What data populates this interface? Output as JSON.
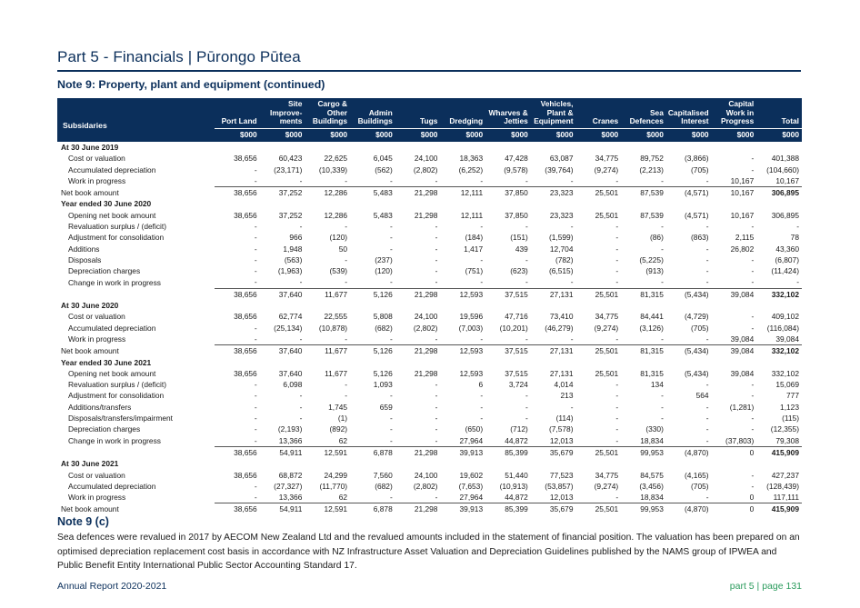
{
  "header": {
    "part_title": "Part 5 - Financials | Pūrongo Pūtea",
    "note_title": "Note 9: Property, plant and equipment (continued)"
  },
  "table": {
    "label_header": "Subsidaries",
    "columns": [
      {
        "title": "Port Land",
        "unit": "$000"
      },
      {
        "title": "Site\nImprove-\nments",
        "unit": "$000"
      },
      {
        "title": "Cargo &\nOther\nBuildings",
        "unit": "$000"
      },
      {
        "title": "Admin\nBuildings",
        "unit": "$000"
      },
      {
        "title": "Tugs",
        "unit": "$000"
      },
      {
        "title": "Dredging",
        "unit": "$000"
      },
      {
        "title": "Wharves &\nJetties",
        "unit": "$000"
      },
      {
        "title": "Vehicles,\nPlant &\nEquipment",
        "unit": "$000"
      },
      {
        "title": "Cranes",
        "unit": "$000"
      },
      {
        "title": "Sea\nDefences",
        "unit": "$000"
      },
      {
        "title": "Capitalised\nInterest",
        "unit": "$000"
      },
      {
        "title": "Capital\nWork in\nProgress",
        "unit": "$000"
      },
      {
        "title": "Total",
        "unit": "$000"
      }
    ],
    "rows": [
      {
        "kind": "section",
        "label": "At 30 June 2019",
        "values": []
      },
      {
        "kind": "item",
        "label": "Cost or valuation",
        "values": [
          "38,656",
          "60,423",
          "22,625",
          "6,045",
          "24,100",
          "18,363",
          "47,428",
          "63,087",
          "34,775",
          "89,752",
          "(3,866)",
          "-",
          "401,388"
        ]
      },
      {
        "kind": "item",
        "label": "Accumulated depreciation",
        "values": [
          "-",
          "(23,171)",
          "(10,339)",
          "(562)",
          "(2,802)",
          "(6,252)",
          "(9,578)",
          "(39,764)",
          "(9,274)",
          "(2,213)",
          "(705)",
          "-",
          "(104,660)"
        ]
      },
      {
        "kind": "item",
        "label": "Work in progress",
        "values": [
          "-",
          "-",
          "-",
          "-",
          "-",
          "-",
          "-",
          "-",
          "-",
          "-",
          "-",
          "10,167",
          "10,167"
        ]
      },
      {
        "kind": "total",
        "label": "Net book amount",
        "values": [
          "38,656",
          "37,252",
          "12,286",
          "5,483",
          "21,298",
          "12,111",
          "37,850",
          "23,323",
          "25,501",
          "87,539",
          "(4,571)",
          "10,167",
          "306,895"
        ]
      },
      {
        "kind": "section",
        "label": "Year ended 30 June 2020",
        "values": []
      },
      {
        "kind": "item",
        "label": "Opening net book amount",
        "values": [
          "38,656",
          "37,252",
          "12,286",
          "5,483",
          "21,298",
          "12,111",
          "37,850",
          "23,323",
          "25,501",
          "87,539",
          "(4,571)",
          "10,167",
          "306,895"
        ]
      },
      {
        "kind": "item",
        "label": "Revaluation surplus / (deficit)",
        "values": [
          "-",
          "-",
          "-",
          "-",
          "-",
          "-",
          "-",
          "-",
          "-",
          "-",
          "-",
          "-",
          "-"
        ]
      },
      {
        "kind": "item",
        "label": "Adjustment for consolidation",
        "values": [
          "-",
          "966",
          "(120)",
          "-",
          "-",
          "(184)",
          "(151)",
          "(1,599)",
          "-",
          "(86)",
          "(863)",
          "2,115",
          "78"
        ]
      },
      {
        "kind": "item",
        "label": "Additions",
        "values": [
          "-",
          "1,948",
          "50",
          "-",
          "-",
          "1,417",
          "439",
          "12,704",
          "-",
          "-",
          "-",
          "26,802",
          "43,360"
        ]
      },
      {
        "kind": "item",
        "label": "Disposals",
        "values": [
          "-",
          "(563)",
          "-",
          "(237)",
          "-",
          "-",
          "-",
          "(782)",
          "-",
          "(5,225)",
          "-",
          "-",
          "(6,807)"
        ]
      },
      {
        "kind": "item",
        "label": "Depreciation charges",
        "values": [
          "-",
          "(1,963)",
          "(539)",
          "(120)",
          "-",
          "(751)",
          "(623)",
          "(6,515)",
          "-",
          "(913)",
          "-",
          "-",
          "(11,424)"
        ]
      },
      {
        "kind": "item",
        "label": "Change in work in progress",
        "values": [
          "-",
          "-",
          "-",
          "-",
          "-",
          "-",
          "-",
          "-",
          "-",
          "-",
          "-",
          "-",
          "-"
        ]
      },
      {
        "kind": "subtotal",
        "label": "",
        "values": [
          "38,656",
          "37,640",
          "11,677",
          "5,126",
          "21,298",
          "12,593",
          "37,515",
          "27,131",
          "25,501",
          "81,315",
          "(5,434)",
          "39,084",
          "332,102"
        ]
      },
      {
        "kind": "section",
        "label": "At 30 June 2020",
        "values": []
      },
      {
        "kind": "item",
        "label": "Cost or valuation",
        "values": [
          "38,656",
          "62,774",
          "22,555",
          "5,808",
          "24,100",
          "19,596",
          "47,716",
          "73,410",
          "34,775",
          "84,441",
          "(4,729)",
          "-",
          "409,102"
        ]
      },
      {
        "kind": "item",
        "label": "Accumulated depreciation",
        "values": [
          "-",
          "(25,134)",
          "(10,878)",
          "(682)",
          "(2,802)",
          "(7,003)",
          "(10,201)",
          "(46,279)",
          "(9,274)",
          "(3,126)",
          "(705)",
          "-",
          "(116,084)"
        ]
      },
      {
        "kind": "item",
        "label": "Work in progress",
        "values": [
          "-",
          "-",
          "-",
          "-",
          "-",
          "-",
          "-",
          "-",
          "-",
          "-",
          "-",
          "39,084",
          "39,084"
        ]
      },
      {
        "kind": "total",
        "label": "Net book amount",
        "values": [
          "38,656",
          "37,640",
          "11,677",
          "5,126",
          "21,298",
          "12,593",
          "37,515",
          "27,131",
          "25,501",
          "81,315",
          "(5,434)",
          "39,084",
          "332,102"
        ]
      },
      {
        "kind": "section",
        "label": "Year ended 30 June 2021",
        "values": []
      },
      {
        "kind": "item",
        "label": "Opening net book amount",
        "values": [
          "38,656",
          "37,640",
          "11,677",
          "5,126",
          "21,298",
          "12,593",
          "37,515",
          "27,131",
          "25,501",
          "81,315",
          "(5,434)",
          "39,084",
          "332,102"
        ]
      },
      {
        "kind": "item",
        "label": "Revaluation surplus / (deficit)",
        "values": [
          "-",
          "6,098",
          "-",
          "1,093",
          "-",
          "6",
          "3,724",
          "4,014",
          "-",
          "134",
          "-",
          "-",
          "15,069"
        ]
      },
      {
        "kind": "item",
        "label": "Adjustment for consolidation",
        "values": [
          "-",
          "-",
          "-",
          "-",
          "-",
          "-",
          "-",
          "213",
          "-",
          "-",
          "564",
          "-",
          "777"
        ]
      },
      {
        "kind": "item",
        "label": "Additions/transfers",
        "values": [
          "-",
          "-",
          "1,745",
          "659",
          "-",
          "-",
          "-",
          "-",
          "-",
          "-",
          "-",
          "(1,281)",
          "1,123"
        ]
      },
      {
        "kind": "item",
        "label": "Disposals/transfers/impairment",
        "values": [
          "-",
          "-",
          "(1)",
          "-",
          "-",
          "-",
          "-",
          "(114)",
          "-",
          "-",
          "-",
          "-",
          "(115)"
        ]
      },
      {
        "kind": "item",
        "label": "Depreciation charges",
        "values": [
          "-",
          "(2,193)",
          "(892)",
          "-",
          "-",
          "(650)",
          "(712)",
          "(7,578)",
          "-",
          "(330)",
          "-",
          "-",
          "(12,355)"
        ]
      },
      {
        "kind": "item",
        "label": "Change in work in progress",
        "values": [
          "-",
          "13,366",
          "62",
          "-",
          "-",
          "27,964",
          "44,872",
          "12,013",
          "-",
          "18,834",
          "-",
          "(37,803)",
          "79,308"
        ]
      },
      {
        "kind": "subtotal",
        "label": "",
        "values": [
          "38,656",
          "54,911",
          "12,591",
          "6,878",
          "21,298",
          "39,913",
          "85,399",
          "35,679",
          "25,501",
          "99,953",
          "(4,870)",
          "0",
          "415,909"
        ]
      },
      {
        "kind": "section",
        "label": "At 30 June 2021",
        "values": []
      },
      {
        "kind": "item",
        "label": "Cost or valuation",
        "values": [
          "38,656",
          "68,872",
          "24,299",
          "7,560",
          "24,100",
          "19,602",
          "51,440",
          "77,523",
          "34,775",
          "84,575",
          "(4,165)",
          "-",
          "427,237"
        ]
      },
      {
        "kind": "item",
        "label": "Accumulated depreciation",
        "values": [
          "-",
          "(27,327)",
          "(11,770)",
          "(682)",
          "(2,802)",
          "(7,653)",
          "(10,913)",
          "(53,857)",
          "(9,274)",
          "(3,456)",
          "(705)",
          "-",
          "(128,439)"
        ]
      },
      {
        "kind": "item",
        "label": "Work in progress",
        "values": [
          "-",
          "13,366",
          "62",
          "-",
          "-",
          "27,964",
          "44,872",
          "12,013",
          "-",
          "18,834",
          "-",
          "0",
          "117,111"
        ]
      },
      {
        "kind": "total",
        "label": "Net book amount",
        "values": [
          "38,656",
          "54,911",
          "12,591",
          "6,878",
          "21,298",
          "39,913",
          "85,399",
          "35,679",
          "25,501",
          "99,953",
          "(4,870)",
          "0",
          "415,909"
        ]
      }
    ]
  },
  "note_c": {
    "title": "Note 9 (c)",
    "text": "Sea defences were revalued in 2017 by AECOM New Zealand Ltd and the revalued amounts included in the statement of financial position. The valuation has been prepared on an optimised depreciation replacement cost basis in accordance with NZ Infrastructure Asset Valuation and Depreciation Guidelines published by the NAMS group of IPWEA and Public Benefit Entity International Public Sector Accounting Standard 17."
  },
  "footer": {
    "left": "Annual Report 2020-2021",
    "part": "part 5",
    "separator": "|",
    "page": "page 131"
  },
  "colors": {
    "navy": "#0b2f5b",
    "green": "#2a9b5c"
  }
}
